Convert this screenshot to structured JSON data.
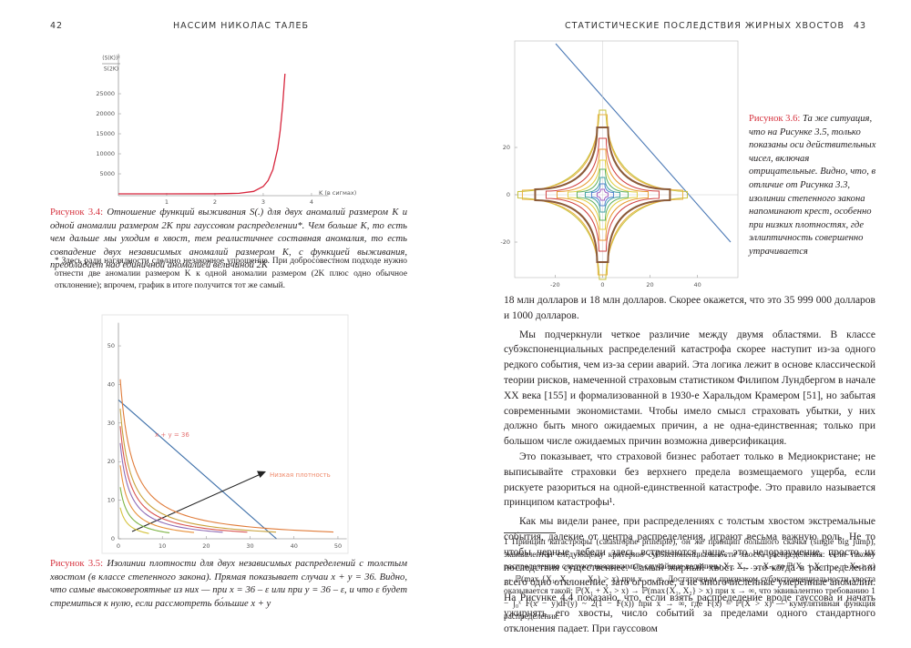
{
  "header": {
    "left_page_number": "42",
    "left_title": "НАССИМ НИКОЛАС ТАЛЕБ",
    "right_title": "СТАТИСТИЧЕСКИЕ ПОСЛЕДСТВИЯ ЖИРНЫХ ХВОСТОВ",
    "right_page_number": "43"
  },
  "chart_data": [
    {
      "type": "line",
      "y_label_numerator": "(S(K))²",
      "y_label_denominator": "S(2K)",
      "x_label": "K (в сигмах)",
      "x": [
        0,
        1,
        2,
        2.5,
        2.8,
        3,
        3.1,
        3.2,
        3.3,
        3.35,
        3.4,
        3.45
      ],
      "series": [
        {
          "color": "#d7263d",
          "values": [
            0.5,
            1.1,
            16,
            134,
            610,
            1850,
            3320,
            6050,
            11300,
            15700,
            21800,
            30000
          ]
        }
      ],
      "xlim": [
        0,
        4.35
      ],
      "ylim": [
        0,
        35000
      ],
      "xticks": [
        1,
        2,
        3,
        4
      ],
      "yticks": [
        5000,
        10000,
        15000,
        20000,
        25000
      ],
      "grid": false,
      "caption_label": "Рисунок 3.4:",
      "caption_text": "Отношение функций выживания S(.) для двух аномалий размером K и одной аномалии размером 2K при гауссовом распределении*. Чем больше K, то есть чем дальше мы уходим в хвост, тем реалистичнее составная аномалия, то есть совпадение двух независимых аномалий размером K, с функцией выживания, преобладает над единичной аномалией величиной 2K",
      "footnote": "* Здесь ради наглядности сделано незаконное упрощение. При добросовестном подходе нужно отнести две аномалии размером K к одной аномалии размером (2K плюс одно обычное отклонение); впрочем, график в итоге получится тот же самый."
    },
    {
      "type": "contour",
      "annotations": [
        "x + y = 36",
        "Низкая плотность"
      ],
      "xlim": [
        0,
        52
      ],
      "ylim": [
        0,
        56
      ],
      "xticks": [
        0,
        10,
        20,
        30,
        40,
        50
      ],
      "yticks": [
        0,
        10,
        20,
        30,
        40,
        50
      ],
      "grid": false,
      "caption_label": "Рисунок 3.5:",
      "caption_text": "Изолинии плотности для двух независимых распределений с толстым хвостом (в классе степенного закона). Прямая показывает случаи x + y = 36. Видно, что самые высоковероятные из них — при x = 36 – ε или при y = 36 – ε, и что ε будет стремиться к нулю, если рассмотреть бо́льшие x + y"
    },
    {
      "type": "contour",
      "xlim": [
        -37,
        57
      ],
      "ylim": [
        -35,
        65
      ],
      "xticks": [
        -20,
        0,
        20,
        40
      ],
      "yticks": [
        -20,
        0,
        20
      ],
      "grid": false,
      "caption_label": "Рисунок 3.6:",
      "caption_text": "Та же ситуация, что на Рисунке 3.5, только показаны оси действительных чисел, включая отрицательные. Видно, что, в отличие от Рисунка 3.3, изолинии степенного закона напоминают крест, особенно при низких плотностях, где эллиптичность совершенно утрачивается"
    }
  ],
  "body": [
    "18 млн долларов и 18 млн долларов. Скорее окажется, что это 35 999 000 долларов и 1000 долларов.",
    "Мы подчеркнули четкое различие между двумя областями. В классе субэкспоненциальных распределений катастрофа скорее наступит из-за одного редкого события, чем из-за серии аварий. Эта логика лежит в основе классической теории рисков, намеченной страховым статистиком Филипом Лундбергом в начале XX века [155] и формализованной в 1930-е Харальдом Крамером [51], но забытая современными экономистами. Чтобы имело смысл страховать убытки, у них должно быть много ожидаемых причин, а не одна-единственная; только при большом числе ожидаемых причин возможна диверсификация.",
    "Это показывает, что страховой бизнес работает только в Медиокристане; не выписывайте страховки без верхнего предела возмещаемого ущерба, если рискуете разориться на одной-единственной катастрофе. Это правило называется принципом катастрофы¹.",
    "Как мы видели ранее, при распределениях с толстым хвостом экстремальные события, далекие от центра распределения, играют весьма важную роль. Не то чтобы черные лебеди здесь встречаются чаще, это недоразумение, просто их последствия существеннее. Самый жирный хвост — это когда в распределении всего одно отклонение, зато огромное, а не многочисленные умеренные аномалии. На Рисунке 4.4 показано, что, если взять распределение вроде гауссова и начать ужирнять его хвосты, число событий за пределами одного стандартного отклонения падает. При гауссовом"
  ],
  "footnote": "1 Принцип катастрофы (catastrophe principle), он же принцип большого скачка (single big jump), эквивалентен следующему критерию субэкспоненциальности хвоста распределения: если такому распределению следуют независимые случайные величины X₁, X₂, …, Xₙ, то ℙ(X₁ + X₂ + … + Xₙ > x) → ℙ(max {X₁, X₂, …, Xₙ} > x) при x → ∞. Достаточным признаком субэкспоненциальности хвоста оказывается такой: ℙ(X₁ + X₂ > x) → ℙ(max{X₁, X₂} > x) при x → ∞, что эквивалентно требованию 1 − ∫₀ˣ F(x − y)dF(y) ~ 2(1 − F(x)) при x → ∞, где F(x) = ℙ(X > x) — кумулятивная функция распределения."
}
